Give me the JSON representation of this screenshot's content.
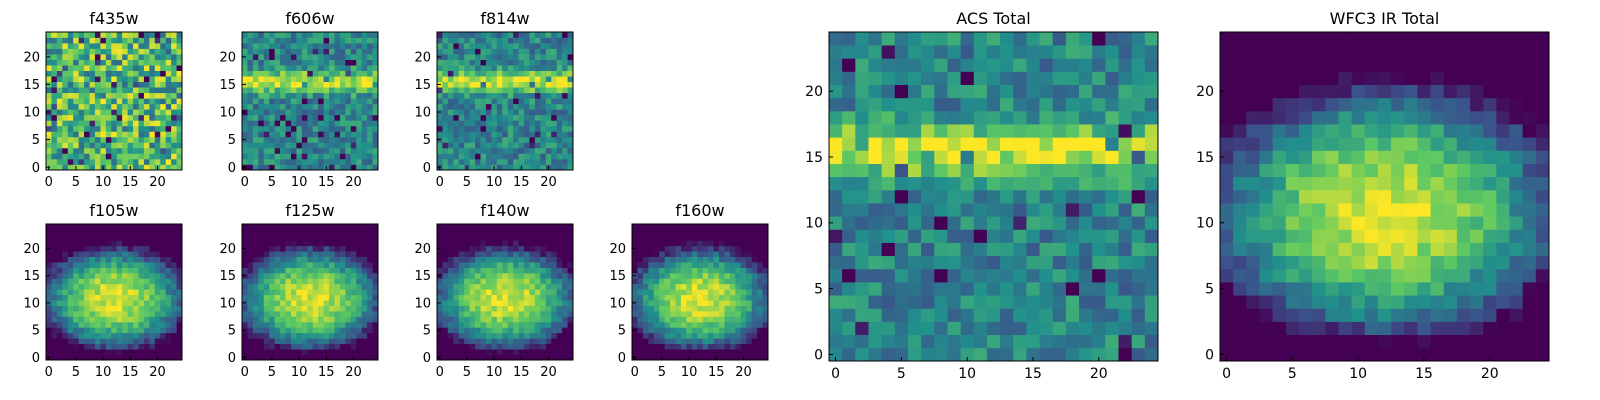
{
  "figure": {
    "colormap": "viridis",
    "colors": [
      "#440154",
      "#3b528b",
      "#21918c",
      "#5ec962",
      "#fde725"
    ]
  },
  "chart_data": [
    {
      "type": "heatmap",
      "title": "f435w",
      "xticks": [
        0,
        5,
        10,
        15,
        20
      ],
      "yticks": [
        0,
        5,
        10,
        15,
        20
      ],
      "xlim": [
        0,
        25
      ],
      "ylim": [
        0,
        25
      ],
      "grid": "off",
      "pattern": "noise"
    },
    {
      "type": "heatmap",
      "title": "f606w",
      "xticks": [
        0,
        5,
        10,
        15,
        20
      ],
      "yticks": [
        0,
        5,
        10,
        15,
        20
      ],
      "xlim": [
        0,
        25
      ],
      "ylim": [
        0,
        25
      ],
      "grid": "off",
      "pattern": "band"
    },
    {
      "type": "heatmap",
      "title": "f814w",
      "xticks": [
        0,
        5,
        10,
        15,
        20
      ],
      "yticks": [
        0,
        5,
        10,
        15,
        20
      ],
      "xlim": [
        0,
        25
      ],
      "ylim": [
        0,
        25
      ],
      "grid": "off",
      "pattern": "band"
    },
    {
      "type": "heatmap",
      "title": "f105w",
      "xticks": [
        0,
        5,
        10,
        15,
        20
      ],
      "yticks": [
        0,
        5,
        10,
        15,
        20
      ],
      "xlim": [
        0,
        25
      ],
      "ylim": [
        0,
        25
      ],
      "grid": "off",
      "pattern": "blob"
    },
    {
      "type": "heatmap",
      "title": "f125w",
      "xticks": [
        0,
        5,
        10,
        15,
        20
      ],
      "yticks": [
        0,
        5,
        10,
        15,
        20
      ],
      "xlim": [
        0,
        25
      ],
      "ylim": [
        0,
        25
      ],
      "grid": "off",
      "pattern": "blob"
    },
    {
      "type": "heatmap",
      "title": "f140w",
      "xticks": [
        0,
        5,
        10,
        15,
        20
      ],
      "yticks": [
        0,
        5,
        10,
        15,
        20
      ],
      "xlim": [
        0,
        25
      ],
      "ylim": [
        0,
        25
      ],
      "grid": "off",
      "pattern": "blob"
    },
    {
      "type": "heatmap",
      "title": "f160w",
      "xticks": [
        0,
        5,
        10,
        15,
        20
      ],
      "yticks": [
        0,
        5,
        10,
        15,
        20
      ],
      "xlim": [
        0,
        25
      ],
      "ylim": [
        0,
        25
      ],
      "grid": "off",
      "pattern": "blob"
    },
    {
      "type": "heatmap",
      "title": "ACS Total",
      "xticks": [
        0,
        5,
        10,
        15,
        20
      ],
      "yticks": [
        0,
        5,
        10,
        15,
        20
      ],
      "xlim": [
        0,
        25
      ],
      "ylim": [
        0,
        25
      ],
      "grid": "off",
      "pattern": "band"
    },
    {
      "type": "heatmap",
      "title": "WFC3 IR Total",
      "xticks": [
        0,
        5,
        10,
        15,
        20
      ],
      "yticks": [
        0,
        5,
        10,
        15,
        20
      ],
      "xlim": [
        0,
        25
      ],
      "ylim": [
        0,
        25
      ],
      "grid": "off",
      "pattern": "blob"
    }
  ]
}
